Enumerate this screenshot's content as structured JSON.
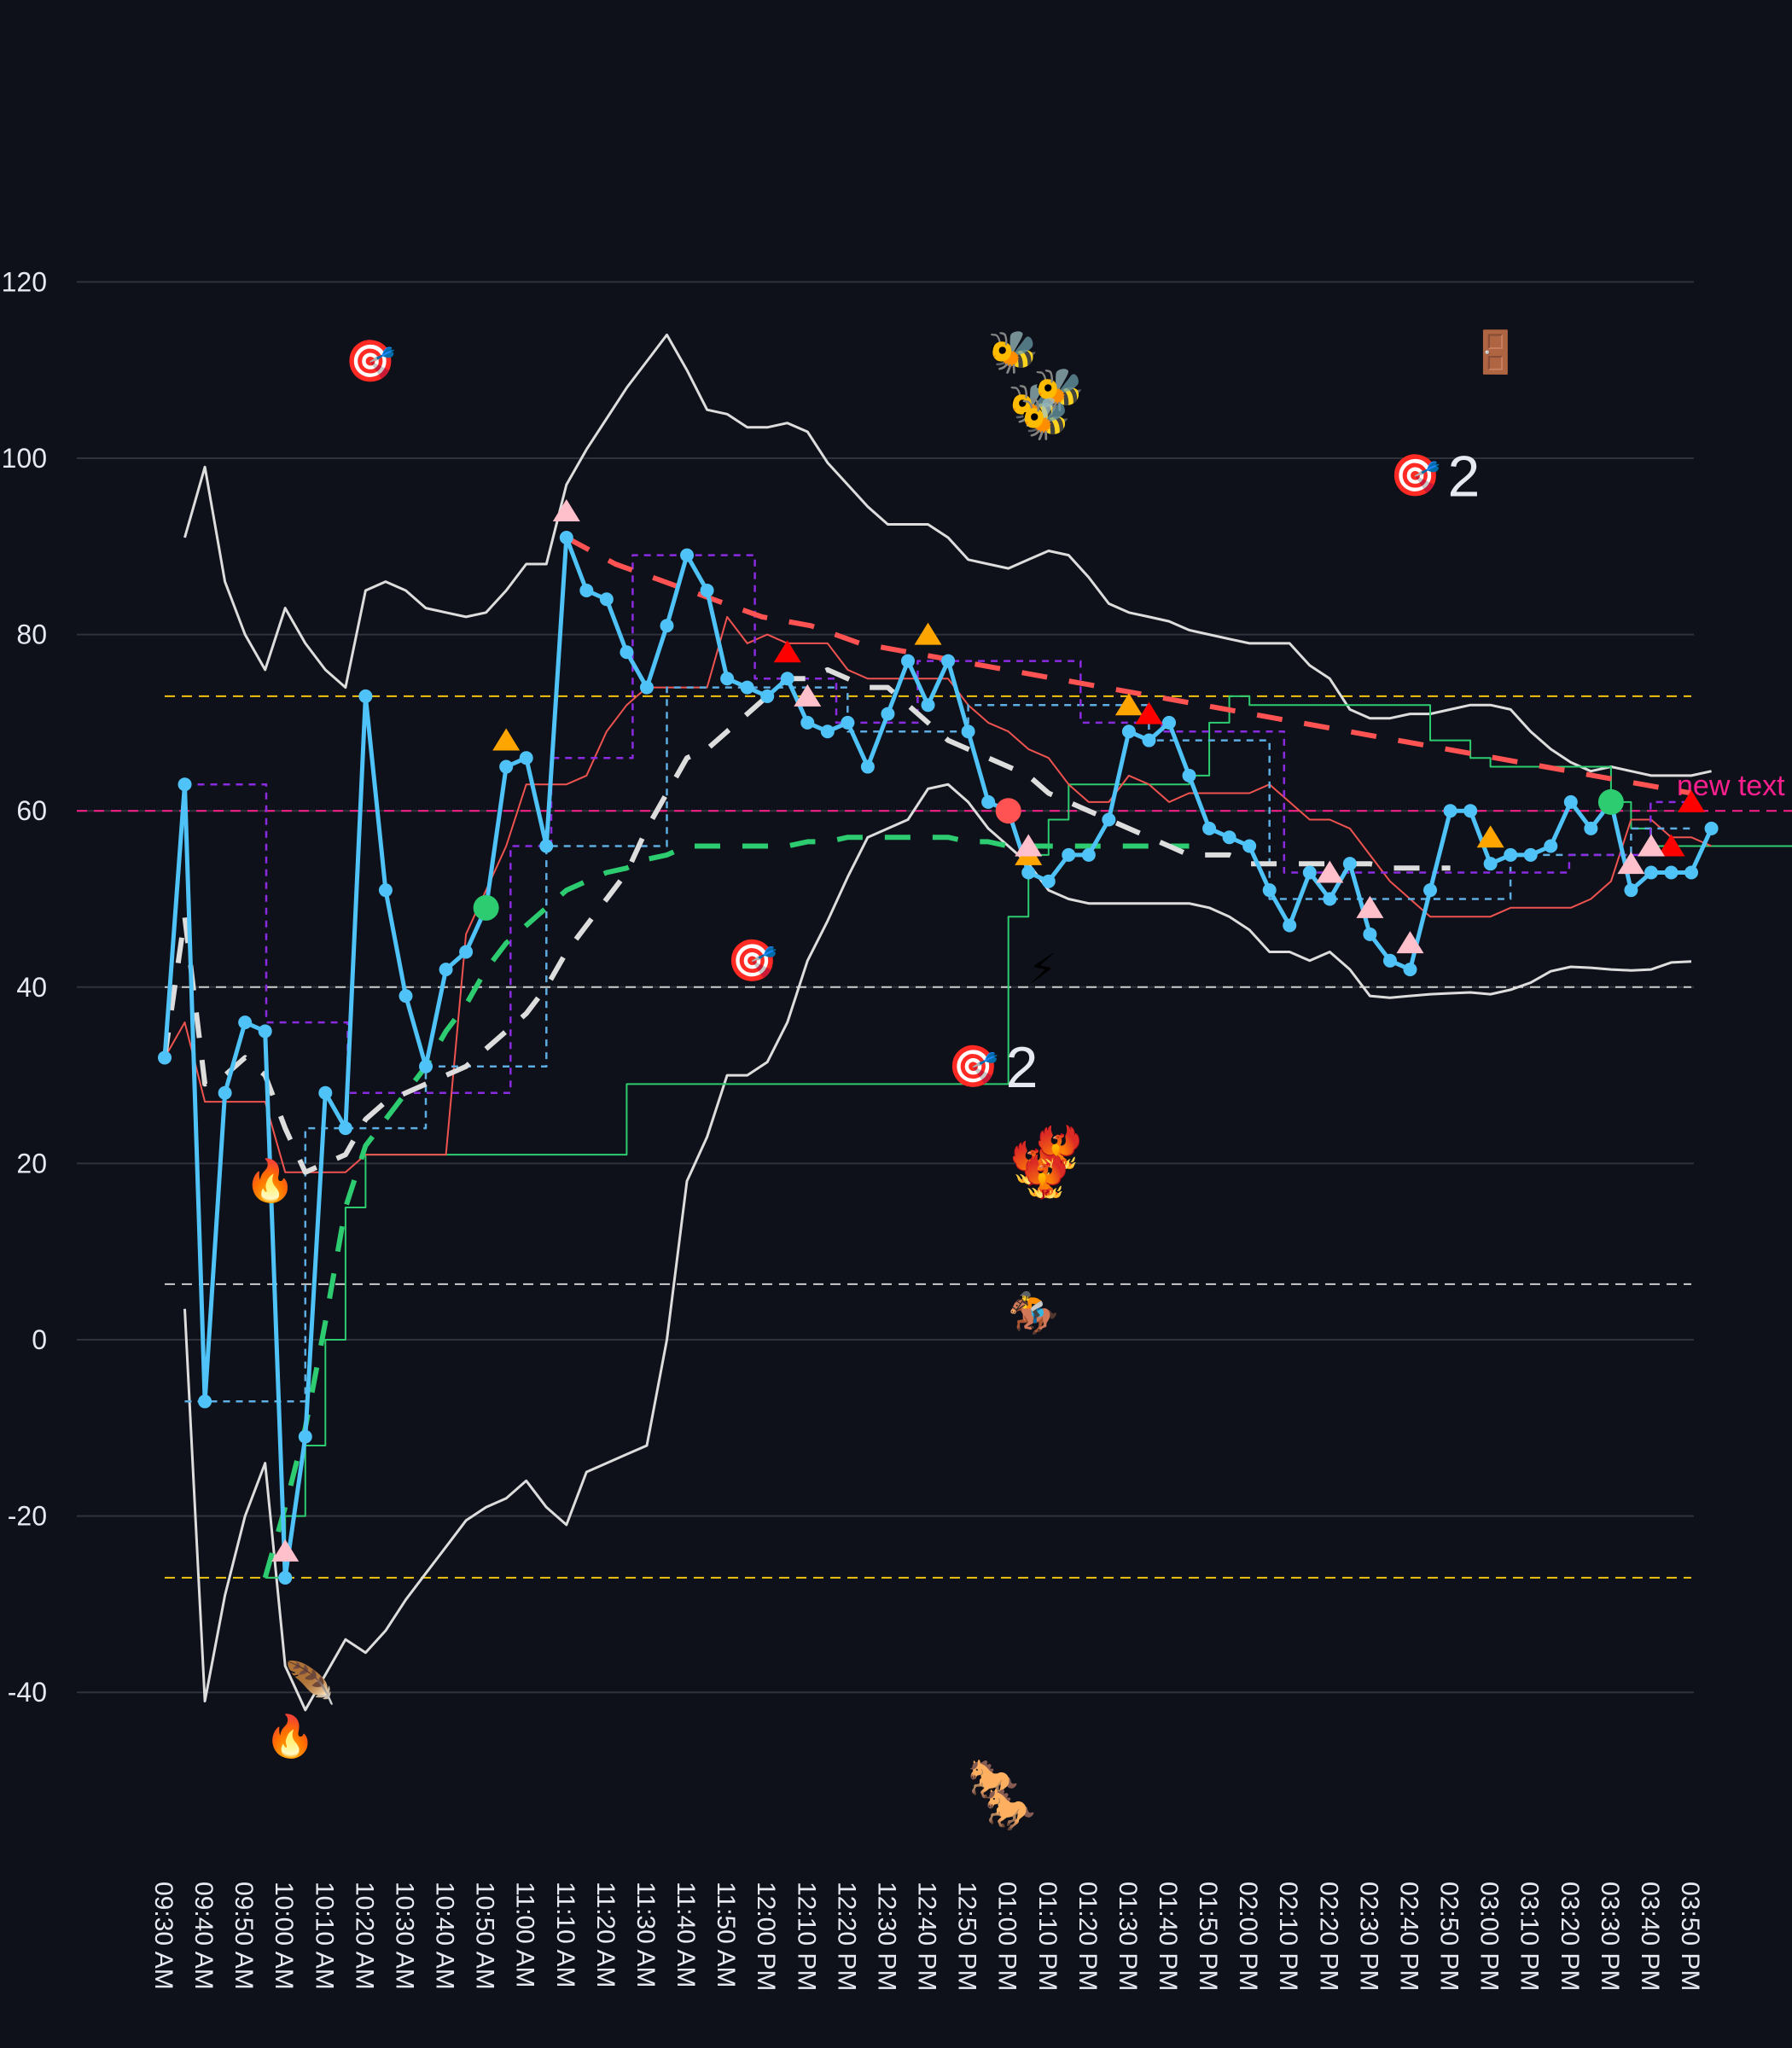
{
  "chart_data": {
    "type": "line",
    "title": "",
    "xlabel": "",
    "ylabel": "",
    "ylim": [
      -55,
      125
    ],
    "grid": true,
    "background": "#0e1119",
    "y_ticks": [
      120,
      100,
      80,
      60,
      40,
      20,
      0,
      -20,
      -40
    ],
    "x_tick_labels": [
      "09:30 AM",
      "09:40 AM",
      "09:50 AM",
      "10:00 AM",
      "10:10 AM",
      "10:20 AM",
      "10:30 AM",
      "10:40 AM",
      "10:50 AM",
      "11:00 AM",
      "11:10 AM",
      "11:20 AM",
      "11:30 AM",
      "11:40 AM",
      "11:50 AM",
      "12:00 PM",
      "12:10 PM",
      "12:20 PM",
      "12:30 PM",
      "12:40 PM",
      "12:50 PM",
      "01:00 PM",
      "01:10 PM",
      "01:20 PM",
      "01:30 PM",
      "01:40 PM",
      "01:50 PM",
      "02:00 PM",
      "02:10 PM",
      "02:20 PM",
      "02:30 PM",
      "02:40 PM",
      "02:50 PM",
      "03:00 PM",
      "03:10 PM",
      "03:20 PM",
      "03:30 PM",
      "03:40 PM",
      "03:50 PM"
    ],
    "x_interval_minutes": 5,
    "series": [
      {
        "name": "price",
        "color": "#4fc3f7",
        "style": "solid-markers",
        "values": [
          32,
          63,
          -7,
          28,
          36,
          35,
          -27,
          -11,
          28,
          24,
          73,
          51,
          39,
          31,
          42,
          44,
          49,
          65,
          66,
          56,
          91,
          85,
          84,
          78,
          74,
          81,
          89,
          85,
          75,
          74,
          73,
          75,
          70,
          69,
          70,
          65,
          71,
          77,
          72,
          77,
          69,
          61,
          60,
          53,
          52,
          55,
          55,
          59,
          69,
          68,
          70,
          64,
          58,
          57,
          56,
          51,
          47,
          53,
          50,
          54,
          46,
          43,
          42,
          51,
          60,
          60,
          54,
          55,
          55,
          56,
          61,
          58,
          61,
          51,
          53,
          53,
          53,
          58
        ]
      },
      {
        "name": "bollinger-upper",
        "color": "#dddddd",
        "style": "solid",
        "start_index": 1,
        "values": [
          91,
          99,
          86,
          80,
          76,
          83,
          79,
          76,
          74,
          85,
          86,
          85,
          83,
          82.5,
          82,
          82.5,
          85,
          88,
          88,
          97,
          101,
          104.5,
          108,
          111,
          114,
          110,
          105.5,
          105,
          103.5,
          103.5,
          104,
          103,
          99.5,
          97,
          94.5,
          92.5,
          92.5,
          92.5,
          91,
          88.5,
          88,
          87.5,
          88.5,
          89.5,
          89,
          86.5,
          83.5,
          82.5,
          82,
          81.5,
          80.5,
          80,
          79.5,
          79,
          79,
          79,
          76.5,
          75,
          71.5,
          70.5,
          70.5,
          71,
          71,
          71.5,
          72,
          72,
          71.5,
          69,
          67,
          65.5,
          64.5,
          65,
          64.5,
          64,
          64,
          64,
          64.5
        ]
      },
      {
        "name": "bollinger-lower",
        "color": "#dddddd",
        "style": "solid",
        "start_index": 1,
        "values": [
          3.5,
          -41,
          -29,
          -20,
          -14,
          -37,
          -42,
          -38,
          -34,
          -35.5,
          -33,
          -29.5,
          -26.5,
          -23.5,
          -20.5,
          -19,
          -18,
          -16,
          -19,
          -21,
          -15,
          -14,
          -13,
          -12,
          0,
          18,
          23,
          30,
          30,
          31.5,
          36,
          43,
          47.5,
          52.5,
          57,
          58,
          59,
          62.5,
          63,
          61,
          58,
          56,
          54,
          51,
          50,
          49.5,
          49.5,
          49.5,
          49.5,
          49.5,
          49.5,
          49,
          48,
          46.5,
          44,
          44,
          43,
          44,
          42,
          39,
          38.8,
          39,
          39.2,
          39.3,
          39.4,
          39.2,
          39.7,
          40.5,
          41.8,
          42.3,
          42.2,
          42,
          41.9,
          42,
          42.8,
          42.9
        ]
      },
      {
        "name": "sma-fast",
        "color": "#ef5350",
        "style": "thin-solid",
        "values": [
          32,
          36,
          27,
          27,
          27,
          27,
          19,
          19,
          19,
          19,
          21,
          21,
          21,
          21,
          21,
          46,
          51,
          56,
          63,
          63,
          63,
          64,
          69,
          72,
          74,
          74,
          74,
          74,
          82,
          79,
          80,
          79,
          79,
          79,
          76,
          75,
          75,
          75,
          75,
          75,
          72,
          70,
          69,
          67,
          66,
          63,
          61,
          61,
          64,
          63,
          61,
          62,
          62,
          62,
          62,
          63,
          61,
          59,
          59,
          58,
          55,
          52,
          50,
          48,
          48,
          48,
          48,
          49,
          49,
          49,
          49,
          50,
          52,
          59,
          59,
          57,
          57,
          56
        ]
      },
      {
        "name": "sma-slow",
        "color": "#2ecc71",
        "style": "thin-solid",
        "step": true,
        "values": [
          null,
          null,
          null,
          null,
          null,
          -27,
          -20,
          -12,
          0,
          15,
          21,
          21,
          21,
          21,
          21,
          21,
          21,
          21,
          21,
          21,
          21,
          21,
          21,
          29,
          29,
          29,
          29,
          29,
          29,
          29,
          29,
          29,
          29,
          29,
          29,
          29,
          29,
          29,
          29,
          29,
          29,
          29,
          48,
          55,
          59,
          63,
          63,
          63,
          63,
          63,
          63,
          64,
          70,
          73,
          72,
          72,
          72,
          72,
          72,
          72,
          72,
          72,
          72,
          68,
          68,
          66,
          65,
          65,
          65,
          65,
          65,
          65,
          61,
          58,
          56,
          56,
          56,
          56,
          56,
          56,
          56,
          56,
          52
        ]
      },
      {
        "name": "ema-dashed-white",
        "color": "#dddddd",
        "style": "long-dash",
        "values": [
          32,
          48,
          29,
          30,
          32,
          30,
          24,
          19,
          20,
          21,
          25,
          27,
          28,
          29,
          30,
          31,
          33,
          35,
          37,
          40,
          44,
          47,
          50,
          53,
          58,
          62,
          66,
          67,
          69,
          71,
          73,
          75,
          75,
          76,
          75,
          74,
          74,
          72,
          70,
          68,
          67,
          66,
          65,
          64,
          62,
          61,
          60,
          59,
          58,
          57,
          56,
          55,
          55,
          55,
          54,
          54,
          54,
          54,
          54,
          54,
          54,
          53.5,
          53.5,
          53.5,
          53.5
        ]
      },
      {
        "name": "ema-dashed-green",
        "color": "#2ecc71",
        "style": "long-dash",
        "values": [
          null,
          null,
          null,
          null,
          null,
          -27,
          -19,
          -10,
          2,
          15,
          22,
          25,
          28,
          31,
          35,
          38,
          42,
          45,
          47,
          49,
          51,
          52,
          53,
          53.5,
          54.5,
          55,
          56,
          56,
          56,
          56,
          56,
          56,
          56.5,
          56.5,
          57,
          57,
          57,
          57,
          57,
          57,
          56.5,
          56.5,
          56,
          56,
          56,
          56,
          56,
          56,
          56,
          56,
          56,
          56
        ]
      },
      {
        "name": "trend-dashed-red",
        "color": "#ff5252",
        "style": "long-dash",
        "values": [
          91,
          88,
          86,
          84,
          82,
          81,
          79,
          78,
          77,
          76,
          75,
          74,
          73,
          72,
          71,
          70,
          69,
          68,
          67,
          66,
          65,
          64,
          63,
          62
        ]
      },
      {
        "name": "step-dashed-purple",
        "color": "#8a2be2",
        "style": "short-dash",
        "step": true,
        "values": [
          63,
          63,
          36,
          36,
          28,
          28,
          28,
          28,
          56,
          66,
          66,
          89,
          89,
          89,
          75,
          75,
          70,
          70,
          77,
          77,
          77,
          77,
          70,
          70,
          69,
          69,
          69,
          53,
          53,
          53,
          53,
          53,
          53,
          53,
          55,
          55,
          61,
          61
        ]
      },
      {
        "name": "step-dashed-blue",
        "color": "#5dade2",
        "style": "short-dash",
        "step": true,
        "values": [
          -7,
          -7,
          24,
          24,
          31,
          31,
          56,
          56,
          74,
          74,
          74,
          69,
          69,
          72,
          72,
          72,
          68,
          68,
          50,
          50,
          50,
          50,
          55,
          55,
          58,
          58
        ]
      }
    ],
    "reference_lines": [
      {
        "y": 73,
        "color": "#f1c40f",
        "style": "dashed"
      },
      {
        "y": 60,
        "color": "#ff1f8e",
        "style": "dashed",
        "label": "new text"
      },
      {
        "y": 40,
        "color": "#cccccc",
        "style": "dashed"
      },
      {
        "y": 6.3,
        "color": "#cccccc",
        "style": "dashed"
      },
      {
        "y": -27,
        "color": "#f1c40f",
        "style": "dashed"
      }
    ],
    "markers": [
      {
        "type": "circle",
        "color": "#2ecc71",
        "x_label": "10:50 AM",
        "y": 49
      },
      {
        "type": "circle",
        "color": "#ff5252",
        "x_label": "01:00 PM",
        "y": 60
      },
      {
        "type": "circle",
        "color": "#2ecc71",
        "x_label": "03:30 PM",
        "y": 61
      },
      {
        "type": "triangle",
        "color": "#ffa500",
        "x_label": "10:55 AM",
        "y": 68
      },
      {
        "type": "triangle",
        "color": "#ffa500",
        "x_label": "12:40 PM",
        "y": 80
      },
      {
        "type": "triangle",
        "color": "#ffa500",
        "x_label": "01:05 PM",
        "y": 55
      },
      {
        "type": "triangle",
        "color": "#ffa500",
        "x_label": "01:30 PM",
        "y": 72
      },
      {
        "type": "triangle",
        "color": "#ffa500",
        "x_label": "03:00 PM",
        "y": 57
      },
      {
        "type": "triangle",
        "color": "#ff0000",
        "x_label": "12:05 PM",
        "y": 78
      },
      {
        "type": "triangle",
        "color": "#ff0000",
        "x_label": "01:35 PM",
        "y": 71
      },
      {
        "type": "triangle",
        "color": "#ff0000",
        "x_label": "03:45 PM",
        "y": 56
      },
      {
        "type": "triangle",
        "color": "#ff0000",
        "x_label": "03:50 PM",
        "y": 61
      },
      {
        "type": "triangle",
        "color": "#ffc0cb",
        "x_label": "10:00 AM",
        "y": -24
      },
      {
        "type": "triangle",
        "color": "#ffc0cb",
        "x_label": "11:10 AM",
        "y": 94
      },
      {
        "type": "triangle",
        "color": "#ffc0cb",
        "x_label": "12:10 PM",
        "y": 73
      },
      {
        "type": "triangle",
        "color": "#ffc0cb",
        "x_label": "01:05 PM",
        "y": 56
      },
      {
        "type": "triangle",
        "color": "#ffc0cb",
        "x_label": "02:20 PM",
        "y": 53
      },
      {
        "type": "triangle",
        "color": "#ffc0cb",
        "x_label": "02:30 PM",
        "y": 49
      },
      {
        "type": "triangle",
        "color": "#ffc0cb",
        "x_label": "02:40 PM",
        "y": 45
      },
      {
        "type": "triangle",
        "color": "#ffc0cb",
        "x_label": "03:35 PM",
        "y": 54
      },
      {
        "type": "triangle",
        "color": "#ffc0cb",
        "x_label": "03:40 PM",
        "y": 56
      }
    ],
    "annotations": [
      {
        "icon": "target-dart",
        "glyph": "🎯",
        "x_label": "10:20 AM",
        "y": 111,
        "text": ""
      },
      {
        "icon": "target-dart",
        "glyph": "🎯",
        "x_label": "02:40 PM",
        "y": 98,
        "text": "2"
      },
      {
        "icon": "target-dart",
        "glyph": "🎯",
        "x_label": "11:55 AM",
        "y": 43,
        "text": ""
      },
      {
        "icon": "target-dart",
        "glyph": "🎯",
        "x_label": "12:50 PM",
        "y": 31,
        "text": "2"
      },
      {
        "icon": "bee",
        "glyph": "🐝",
        "x_label": "01:00 PM",
        "y": 112,
        "count": 1
      },
      {
        "icon": "bee",
        "glyph": "🐝",
        "x_label": "01:05 PM",
        "y": 106,
        "count": 3
      },
      {
        "icon": "door",
        "glyph": "🚪",
        "x_label": "03:00 PM",
        "y": 112
      },
      {
        "icon": "lightning",
        "glyph": "⚡",
        "x_label": "01:10 PM",
        "y": 42
      },
      {
        "icon": "fire-bird",
        "glyph": "🐦‍🔥",
        "x_label": "01:05 PM",
        "y": 20,
        "count": 3
      },
      {
        "icon": "horse-racing",
        "glyph": "🏇",
        "x_label": "01:05 PM",
        "y": 3
      },
      {
        "icon": "horse",
        "glyph": "🐎",
        "x_label": "12:55 PM",
        "y": -50,
        "count": 2
      },
      {
        "icon": "fire",
        "glyph": "🔥",
        "x_label": "09:55 AM",
        "y": 18
      },
      {
        "icon": "fire",
        "glyph": "🔥",
        "x_label": "10:00 AM",
        "y": -45
      },
      {
        "icon": "feather",
        "glyph": "🪶",
        "x_label": "10:05 AM",
        "y": -39
      }
    ],
    "ref_label_text": "new text"
  }
}
